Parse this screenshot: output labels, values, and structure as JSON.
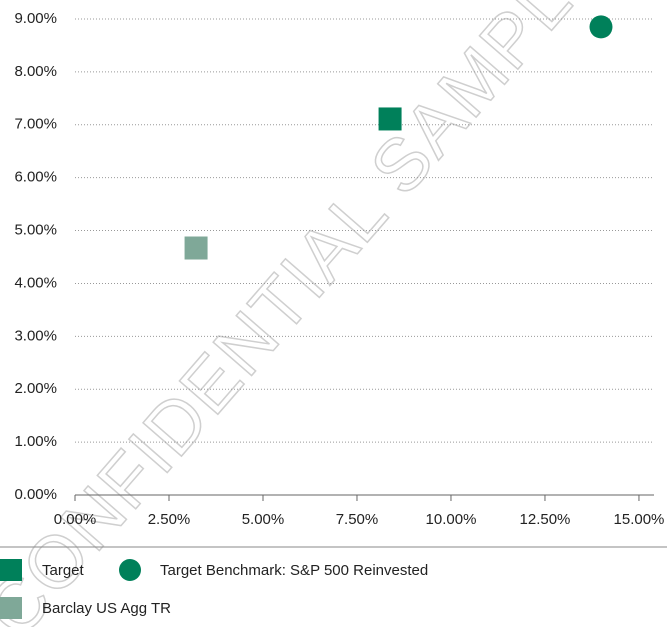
{
  "chart_data": {
    "type": "scatter",
    "watermark": "CONFIDENTIAL SAMPLE",
    "xlim": [
      0,
      15.4
    ],
    "ylim": [
      0,
      9
    ],
    "xticks": [
      {
        "value": 0,
        "label": "0.00%"
      },
      {
        "value": 2.5,
        "label": "2.50%"
      },
      {
        "value": 5,
        "label": "5.00%"
      },
      {
        "value": 7.5,
        "label": "7.50%"
      },
      {
        "value": 10,
        "label": "10.00%"
      },
      {
        "value": 12.5,
        "label": "12.50%"
      },
      {
        "value": 15,
        "label": "15.00%"
      }
    ],
    "yticks": [
      {
        "value": 0,
        "label": "0.00%"
      },
      {
        "value": 1,
        "label": "1.00%"
      },
      {
        "value": 2,
        "label": "2.00%"
      },
      {
        "value": 3,
        "label": "3.00%"
      },
      {
        "value": 4,
        "label": "4.00%"
      },
      {
        "value": 5,
        "label": "5.00%"
      },
      {
        "value": 6,
        "label": "6.00%"
      },
      {
        "value": 7,
        "label": "7.00%"
      },
      {
        "value": 8,
        "label": "8.00%"
      },
      {
        "value": 9,
        "label": "9.00%"
      }
    ],
    "grid": true,
    "series": [
      {
        "name": "Target",
        "color": "#00805a",
        "marker": "square",
        "x": [
          8.38
        ],
        "y": [
          7.11
        ]
      },
      {
        "name": "Target Benchmark: S&P 500 Reinvested",
        "color": "#00805a",
        "marker": "circle",
        "x": [
          13.99
        ],
        "y": [
          8.85
        ]
      },
      {
        "name": "Barclay US Agg TR",
        "color": "#7fa898",
        "marker": "square",
        "x": [
          3.22
        ],
        "y": [
          4.67
        ]
      }
    ]
  }
}
